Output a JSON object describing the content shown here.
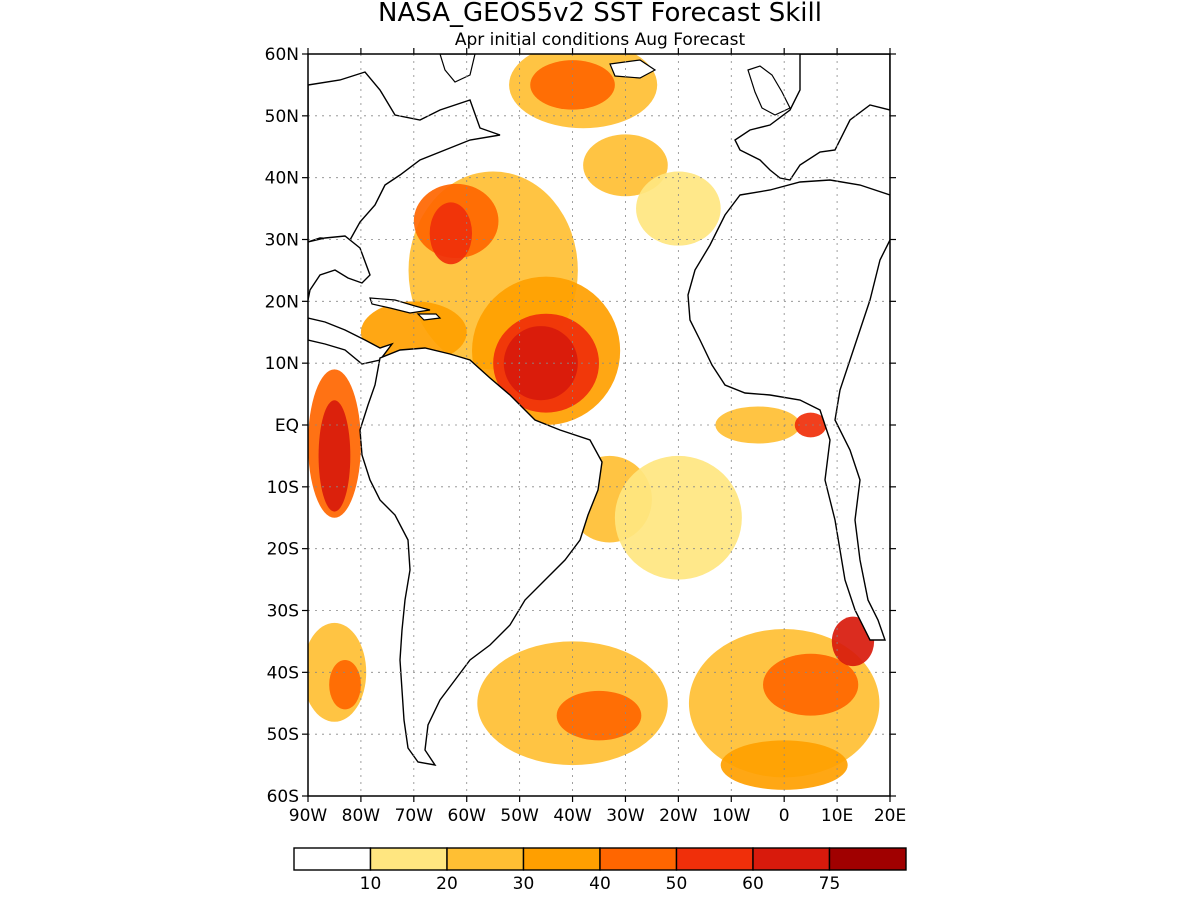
{
  "title": "NASA_GEOS5v2 SST Forecast Skill",
  "subtitle": "Apr initial conditions  Aug Forecast",
  "map": {
    "projection": "equirectangular",
    "lon_range": [
      -90,
      20
    ],
    "lat_range": [
      -60,
      60
    ],
    "grid": true,
    "lat_ticks": [
      {
        "value": 60,
        "label": "60N"
      },
      {
        "value": 50,
        "label": "50N"
      },
      {
        "value": 40,
        "label": "40N"
      },
      {
        "value": 30,
        "label": "30N"
      },
      {
        "value": 20,
        "label": "20N"
      },
      {
        "value": 10,
        "label": "10N"
      },
      {
        "value": 0,
        "label": "EQ"
      },
      {
        "value": -10,
        "label": "10S"
      },
      {
        "value": -20,
        "label": "20S"
      },
      {
        "value": -30,
        "label": "30S"
      },
      {
        "value": -40,
        "label": "40S"
      },
      {
        "value": -50,
        "label": "50S"
      },
      {
        "value": -60,
        "label": "60S"
      }
    ],
    "lon_ticks": [
      {
        "value": -90,
        "label": "90W"
      },
      {
        "value": -80,
        "label": "80W"
      },
      {
        "value": -70,
        "label": "70W"
      },
      {
        "value": -60,
        "label": "60W"
      },
      {
        "value": -50,
        "label": "50W"
      },
      {
        "value": -40,
        "label": "40W"
      },
      {
        "value": -30,
        "label": "30W"
      },
      {
        "value": -20,
        "label": "20W"
      },
      {
        "value": -10,
        "label": "10W"
      },
      {
        "value": 0,
        "label": "0"
      },
      {
        "value": 10,
        "label": "10E"
      },
      {
        "value": 20,
        "label": "20E"
      }
    ]
  },
  "legend": {
    "bins": [
      {
        "color": "#ffffff"
      },
      {
        "color": "#ffe680"
      },
      {
        "color": "#ffbf33"
      },
      {
        "color": "#ff9f00"
      },
      {
        "color": "#ff6600"
      },
      {
        "color": "#f02f0a"
      },
      {
        "color": "#d81a0c"
      },
      {
        "color": "#a00000"
      }
    ],
    "labels": [
      "10",
      "20",
      "30",
      "40",
      "50",
      "60",
      "75"
    ]
  },
  "skill_regions": [
    {
      "level": 2,
      "lon": -55,
      "lat": 25,
      "rx": 16,
      "ry": 16
    },
    {
      "level": 4,
      "lon": -62,
      "lat": 33,
      "rx": 8,
      "ry": 6
    },
    {
      "level": 5,
      "lon": -63,
      "lat": 31,
      "rx": 4,
      "ry": 5
    },
    {
      "level": 2,
      "lon": -38,
      "lat": 55,
      "rx": 14,
      "ry": 7
    },
    {
      "level": 4,
      "lon": -40,
      "lat": 55,
      "rx": 8,
      "ry": 4
    },
    {
      "level": 2,
      "lon": -30,
      "lat": 42,
      "rx": 8,
      "ry": 5
    },
    {
      "level": 1,
      "lon": -20,
      "lat": 35,
      "rx": 8,
      "ry": 6
    },
    {
      "level": 3,
      "lon": -45,
      "lat": 12,
      "rx": 14,
      "ry": 12
    },
    {
      "level": 5,
      "lon": -45,
      "lat": 10,
      "rx": 10,
      "ry": 8
    },
    {
      "level": 6,
      "lon": -46,
      "lat": 10,
      "rx": 7,
      "ry": 6
    },
    {
      "level": 3,
      "lon": -70,
      "lat": 15,
      "rx": 10,
      "ry": 5
    },
    {
      "level": 2,
      "lon": -33,
      "lat": -12,
      "rx": 8,
      "ry": 7
    },
    {
      "level": 1,
      "lon": -20,
      "lat": -15,
      "rx": 12,
      "ry": 10
    },
    {
      "level": 2,
      "lon": -5,
      "lat": 0,
      "rx": 8,
      "ry": 3
    },
    {
      "level": 5,
      "lon": 5,
      "lat": 0,
      "rx": 3,
      "ry": 2
    },
    {
      "level": 4,
      "lon": -85,
      "lat": -3,
      "rx": 5,
      "ry": 12
    },
    {
      "level": 6,
      "lon": -85,
      "lat": -5,
      "rx": 3,
      "ry": 9
    },
    {
      "level": 2,
      "lon": -85,
      "lat": -40,
      "rx": 6,
      "ry": 8
    },
    {
      "level": 4,
      "lon": -83,
      "lat": -42,
      "rx": 3,
      "ry": 4
    },
    {
      "level": 2,
      "lon": -40,
      "lat": -45,
      "rx": 18,
      "ry": 10
    },
    {
      "level": 4,
      "lon": -35,
      "lat": -47,
      "rx": 8,
      "ry": 4
    },
    {
      "level": 2,
      "lon": 0,
      "lat": -45,
      "rx": 18,
      "ry": 12
    },
    {
      "level": 4,
      "lon": 5,
      "lat": -42,
      "rx": 9,
      "ry": 5
    },
    {
      "level": 6,
      "lon": 13,
      "lat": -35,
      "rx": 4,
      "ry": 4
    },
    {
      "level": 3,
      "lon": 0,
      "lat": -55,
      "rx": 12,
      "ry": 4
    }
  ]
}
